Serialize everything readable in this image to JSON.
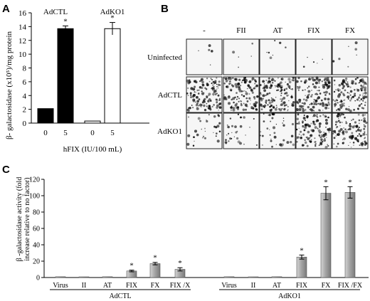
{
  "panels": {
    "a": {
      "letter": "A"
    },
    "b": {
      "letter": "B"
    },
    "c": {
      "letter": "C"
    }
  },
  "chart_data": [
    {
      "type": "bar",
      "panel": "A",
      "ylabel": "β- galactosidase (x10⁵)/mg protein",
      "xlabel": "hFIX (IU/100 mL)",
      "ylim": [
        0,
        16
      ],
      "yticks": [
        0,
        2,
        4,
        6,
        8,
        10,
        12,
        14,
        16
      ],
      "groups": [
        "AdCTL",
        "AdKO1"
      ],
      "categories": [
        "0",
        "5",
        "0",
        "5"
      ],
      "series": [
        {
          "values": [
            2.1,
            13.7,
            0.3,
            13.7
          ],
          "errors": [
            0,
            0.4,
            0,
            0.9
          ],
          "group": [
            "AdCTL",
            "AdCTL",
            "AdKO1",
            "AdKO1"
          ],
          "fill": [
            "#000000",
            "#000000",
            "#ffffff",
            "#ffffff"
          ]
        }
      ],
      "significance": [
        "",
        "*",
        "",
        "*"
      ]
    },
    {
      "type": "image-grid",
      "panel": "B",
      "columns": [
        "-",
        "FII",
        "AT",
        "FIX",
        "FX"
      ],
      "rows": [
        "Uninfected",
        "AdCTL",
        "AdKO1"
      ],
      "stain_density": [
        [
          0.01,
          0.01,
          0.02,
          0.01,
          0.02
        ],
        [
          0.55,
          0.5,
          0.55,
          0.5,
          0.55
        ],
        [
          0.12,
          0.12,
          0.14,
          0.45,
          0.45
        ]
      ]
    },
    {
      "type": "bar",
      "panel": "C",
      "ylabel": "β -galactosidase activity (fold increase relative to no factor)",
      "ylim": [
        0,
        120
      ],
      "yticks": [
        0,
        20,
        40,
        60,
        80,
        100,
        120
      ],
      "groups": [
        {
          "name": "AdCTL",
          "categories": [
            "Virus",
            "II",
            "AT",
            "FIX",
            "FX",
            "FIX /X"
          ]
        },
        {
          "name": "AdKO1",
          "categories": [
            "Virus",
            "II",
            "AT",
            "FIX",
            "FX",
            "FIX /FX"
          ]
        }
      ],
      "series": [
        {
          "values": [
            1,
            0.5,
            1,
            8,
            17,
            10,
            1,
            0.5,
            1,
            25,
            103,
            104
          ],
          "errors": [
            0,
            0,
            0,
            1,
            1.5,
            2,
            0,
            0,
            0,
            2.5,
            8,
            7
          ]
        }
      ],
      "significance": [
        "",
        "",
        "",
        "*",
        "*",
        "*",
        "",
        "",
        "",
        "*",
        "*",
        "*"
      ],
      "colors": {
        "bar": "#a6a6a6",
        "bar_light": "#d4d4d4"
      }
    }
  ]
}
